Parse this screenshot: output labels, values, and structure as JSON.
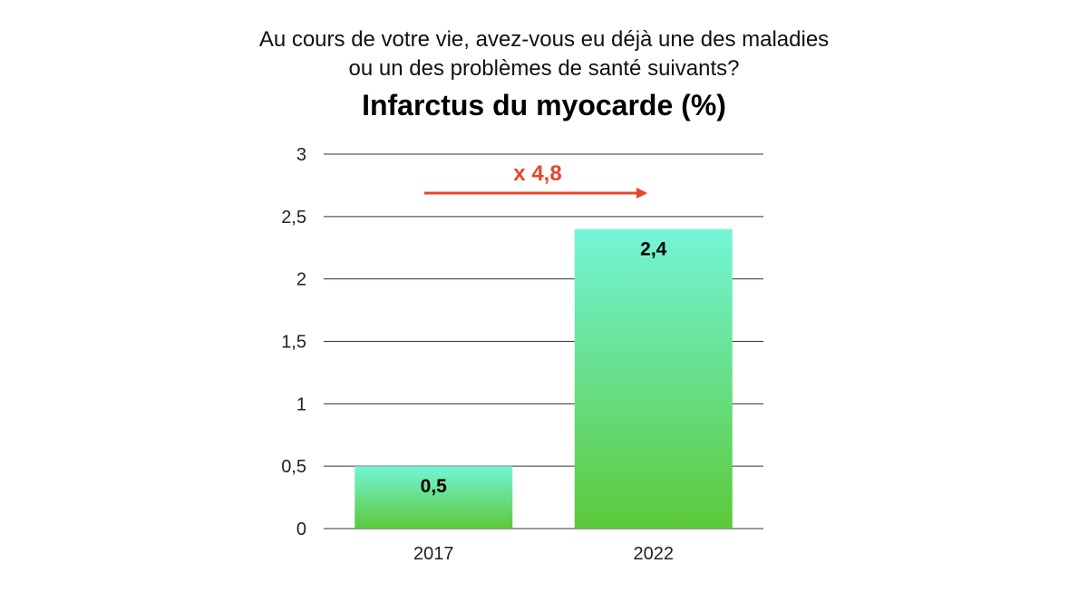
{
  "question": {
    "line1": "Au cours de votre vie, avez-vous eu déjà une des maladies",
    "line2": "ou un des problèmes de santé suivants?"
  },
  "chart_data": {
    "type": "bar",
    "title": "Infarctus du myocarde (%)",
    "xlabel": "",
    "ylabel": "",
    "categories": [
      "2017",
      "2022"
    ],
    "values": [
      0.5,
      2.4
    ],
    "value_labels": [
      "0,5",
      "2,4"
    ],
    "ylim": [
      0,
      3
    ],
    "yticks": [
      0,
      0.5,
      1,
      1.5,
      2,
      2.5,
      3
    ],
    "ytick_labels": [
      "0",
      "0,5",
      "1",
      "1,5",
      "2",
      "2,5",
      "3"
    ],
    "grid": true,
    "legend": "none",
    "annotation": {
      "text": "x 4,8",
      "arrow": "right",
      "color": "#e8452c"
    },
    "colors": {
      "bar_top": "#73f5d8",
      "bar_bottom": "#5cc93a",
      "grid": "#333333"
    }
  }
}
